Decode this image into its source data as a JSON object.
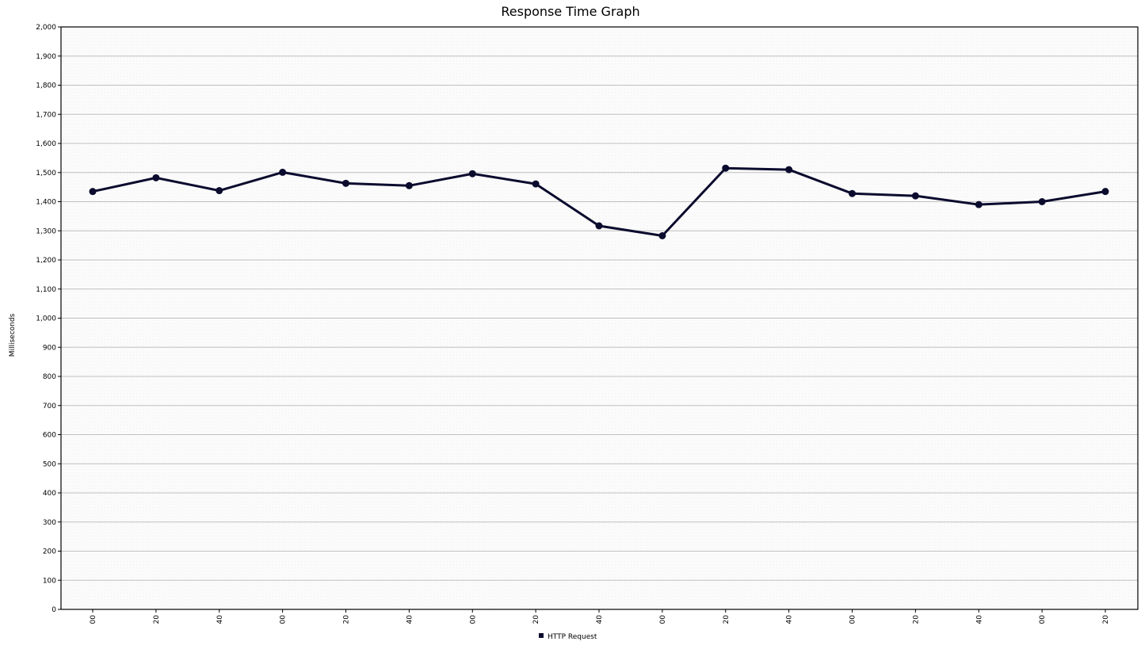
{
  "chart_data": {
    "type": "line",
    "title": "Response Time Graph",
    "ylabel": "Milliseconds",
    "xlabel": "",
    "ylim": [
      0,
      2000
    ],
    "y_ticks": [
      "0",
      "100",
      "200",
      "300",
      "400",
      "500",
      "600",
      "700",
      "800",
      "900",
      "1,000",
      "1,100",
      "1,200",
      "1,300",
      "1,400",
      "1,500",
      "1,600",
      "1,700",
      "1,800",
      "1,900",
      "2,000"
    ],
    "categories": [
      "00",
      "20",
      "40",
      "00",
      "20",
      "40",
      "00",
      "20",
      "40",
      "00",
      "20",
      "40",
      "00",
      "20",
      "40",
      "00",
      "20"
    ],
    "series": [
      {
        "name": "HTTP Request",
        "color": "#0b0b2e",
        "values": [
          1435,
          1482,
          1438,
          1501,
          1463,
          1455,
          1496,
          1461,
          1317,
          1283,
          1515,
          1510,
          1428,
          1420,
          1390,
          1400,
          1435
        ]
      }
    ],
    "grid": true,
    "legend": "bottom-center"
  },
  "colors": {
    "plot_background": "#fafafa",
    "grid": "#c0c0c0",
    "series_line": "#0b0b2e"
  }
}
